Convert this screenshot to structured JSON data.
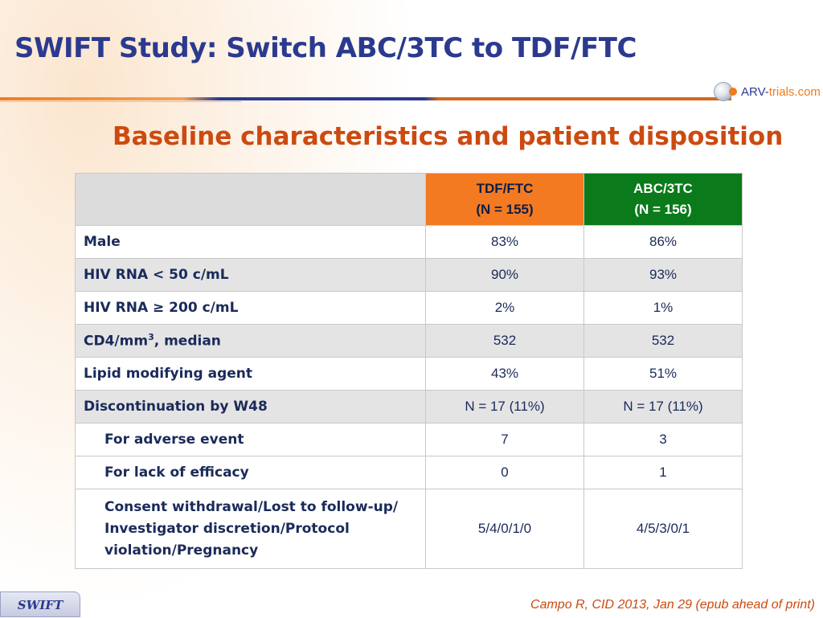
{
  "header": {
    "title": "SWIFT Study: Switch ABC/3TC to TDF/FTC",
    "logo_prefix": "ARV-",
    "logo_main": "trials",
    "logo_suffix": ".com"
  },
  "subtitle": "Baseline characteristics and patient disposition",
  "table": {
    "col_tdf_line1": "TDF/FTC",
    "col_tdf_line2": "(N = 155)",
    "col_abc_line1": "ABC/3TC",
    "col_abc_line2": "(N = 156)",
    "rows": [
      {
        "label": "Male",
        "tdf": "83%",
        "abc": "86%"
      },
      {
        "label": "HIV RNA < 50 c/mL",
        "tdf": "90%",
        "abc": "93%"
      },
      {
        "label": "HIV RNA ≥ 200 c/mL",
        "tdf": "2%",
        "abc": "1%"
      },
      {
        "label": "CD4/mm",
        "label_sup": "3",
        "label_after": ", median",
        "tdf": "532",
        "abc": "532"
      },
      {
        "label": "Lipid modifying agent",
        "tdf": "43%",
        "abc": "51%"
      },
      {
        "label": "Discontinuation by W48",
        "tdf": "N = 17 (11%)",
        "abc": "N = 17 (11%)"
      },
      {
        "label": "For adverse event",
        "tdf": "7",
        "abc": "3"
      },
      {
        "label": "For lack of efficacy",
        "tdf": "0",
        "abc": "1"
      },
      {
        "label_line1": "Consent withdrawal/Lost to follow-up/",
        "label_line2": "Investigator discretion/Protocol",
        "label_line3": "violation/Pregnancy",
        "tdf": "5/4/0/1/0",
        "abc": "4/5/3/0/1"
      }
    ]
  },
  "footer": {
    "tab_label": "SWIFT",
    "citation": "Campo R, CID 2013, Jan 29 (epub ahead of print)"
  }
}
